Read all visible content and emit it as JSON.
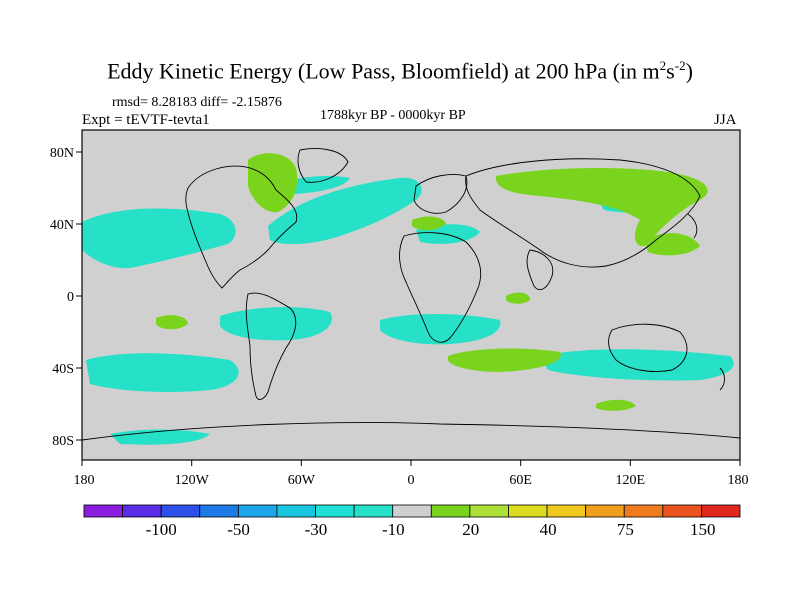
{
  "title": {
    "main": "Eddy Kinetic Energy (Low Pass, Bloomfield) at 200 hPa (in m",
    "sup1": "2",
    "mid": "s",
    "sup2": "-2",
    "end": ")"
  },
  "stats": "rmsd= 8.28183 diff= -2.15876",
  "expt": "Expt = tEVTF-tevta1",
  "period": "1788kyr BP - 0000kyr BP",
  "season": "JJA",
  "colors": {
    "land_gray": "#d0d0d0",
    "coast": "#000000",
    "cyan": "#26e0c8",
    "cyan_dark": "#18c6e0",
    "blue_light": "#1ea6ea",
    "green": "#7ad41e",
    "green_light": "#aee03a",
    "yellow": "#dcdc1e"
  },
  "axes": {
    "x_ticks": [
      "180",
      "120W",
      "60W",
      "0",
      "60E",
      "120E",
      "180"
    ],
    "y_ticks": [
      "80N",
      "40N",
      "0",
      "40S",
      "80S"
    ]
  },
  "colorbar": {
    "colors": [
      "#8a1ee0",
      "#5a2ee6",
      "#2e50ea",
      "#1e7ae6",
      "#1ea6ea",
      "#18c6e0",
      "#1ee0d6",
      "#26e0c8",
      "#d0d0d0",
      "#7ad41e",
      "#aee03a",
      "#dcdc1e",
      "#f0c81e",
      "#f0a01e",
      "#f07a1e",
      "#ea521e",
      "#e0281e"
    ],
    "labels": [
      "-100",
      "-50",
      "-30",
      "-10",
      "20",
      "40",
      "75",
      "150"
    ]
  }
}
